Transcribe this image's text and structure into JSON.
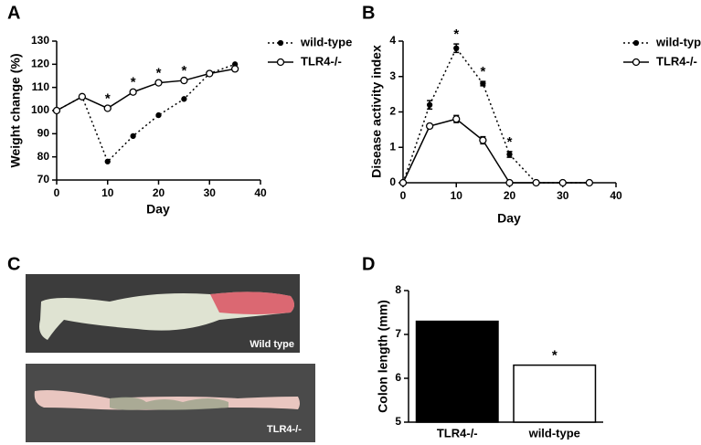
{
  "chart_data": [
    {
      "type": "line",
      "label": "A",
      "x_label": "Day",
      "y_label": "Weight change (%)",
      "x": [
        0,
        5,
        10,
        15,
        20,
        25,
        30,
        35
      ],
      "series": [
        {
          "name": "wild-type",
          "color": "#000000",
          "line_style": "dotted",
          "marker": "filled",
          "values": [
            100,
            106,
            78,
            89,
            98,
            105,
            116,
            120
          ]
        },
        {
          "name": "TLR4-/-",
          "color": "#000000",
          "line_style": "solid",
          "marker": "open",
          "values": [
            100,
            106,
            101,
            108,
            112,
            113,
            116,
            118
          ]
        }
      ],
      "annotations": [
        {
          "text": "*",
          "x": 10
        },
        {
          "text": "*",
          "x": 15
        },
        {
          "text": "*",
          "x": 20
        },
        {
          "text": "*",
          "x": 25
        }
      ],
      "xlim": [
        0,
        40
      ],
      "xticks": [
        0,
        10,
        20,
        30,
        40
      ],
      "ylim": [
        70,
        130
      ],
      "yticks": [
        70,
        80,
        90,
        100,
        110,
        120,
        130
      ],
      "legend": "right"
    },
    {
      "type": "line",
      "label": "B",
      "x_label": "Day",
      "y_label": "Disease activity index",
      "x": [
        0,
        5,
        10,
        15,
        20,
        25,
        30,
        35
      ],
      "series": [
        {
          "name": "wild-type",
          "color": "#000000",
          "line_style": "dotted",
          "marker": "filled",
          "values": [
            0,
            2.2,
            3.8,
            2.8,
            0.8,
            0,
            0,
            0
          ],
          "errors": [
            0,
            0.12,
            0.12,
            0.06,
            0.08,
            0,
            0,
            0
          ]
        },
        {
          "name": "TLR4-/-",
          "color": "#000000",
          "line_style": "solid",
          "marker": "open",
          "values": [
            0,
            1.6,
            1.8,
            1.2,
            0,
            0,
            0,
            0
          ],
          "errors": [
            0,
            0.06,
            0.1,
            0.1,
            0,
            0,
            0,
            0
          ]
        }
      ],
      "annotations": [
        {
          "text": "*",
          "x": 10
        },
        {
          "text": "*",
          "x": 15
        },
        {
          "text": "*",
          "x": 20
        }
      ],
      "xlim": [
        0,
        40
      ],
      "xticks": [
        0,
        10,
        20,
        30,
        40
      ],
      "ylim": [
        0,
        4
      ],
      "yticks": [
        0,
        1,
        2,
        3,
        4
      ],
      "legend": "right"
    },
    {
      "type": "bar",
      "label": "D",
      "y_label": "Colon length (mm)",
      "categories": [
        "TLR4-/-",
        "wild-type"
      ],
      "values": [
        7.3,
        6.3
      ],
      "colors": [
        "#000000",
        "#ffffff"
      ],
      "annotations": [
        {
          "text": "*",
          "category": "wild-type"
        }
      ],
      "ylim": [
        5,
        8
      ],
      "yticks": [
        5,
        6,
        7,
        8
      ]
    }
  ],
  "photo": {
    "label": "C",
    "captions": [
      "Wild type",
      "TLR4-/-"
    ]
  }
}
